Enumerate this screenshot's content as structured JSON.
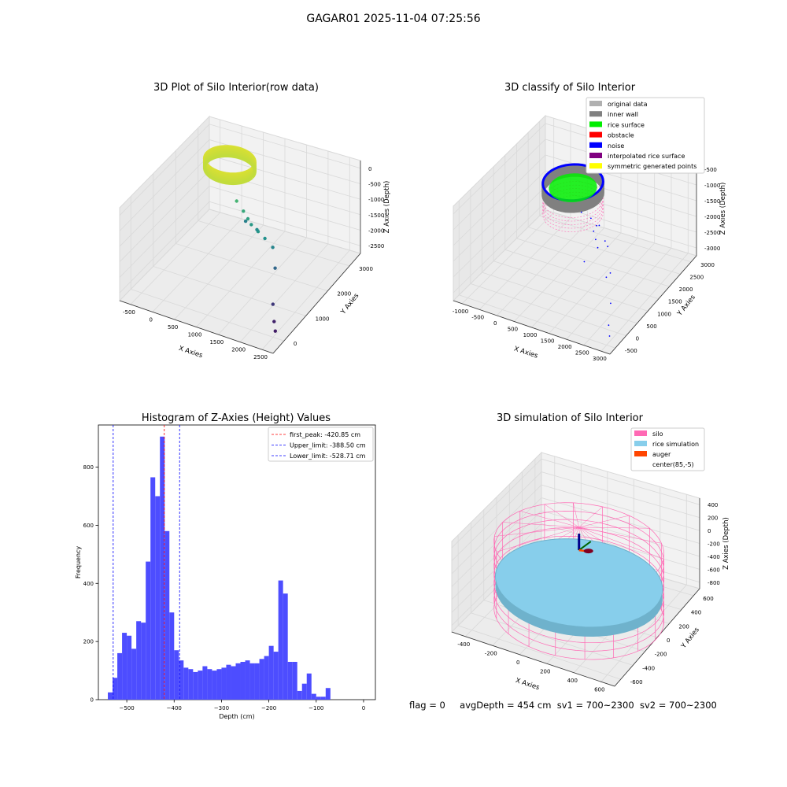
{
  "figure": {
    "suptitle": "GAGAR01 2025-11-04 07:25:56",
    "status": {
      "flag": "flag = 0",
      "avg_depth": "avgDepth = 454 cm",
      "sv1": "sv1 = 700~2300",
      "sv2": "sv2 = 700~2300"
    }
  },
  "colors": {
    "pane": "#f2f2f2",
    "grid": "#d9d9d9",
    "axis": "#000000",
    "original_data": "#b0b0b0",
    "inner_wall": "#808080",
    "rice_surface": "#00ee00",
    "obstacle": "#ff0000",
    "noise": "#0000ff",
    "interpolated_rice_surface": "#800080",
    "symmetric_generated_points": "#ffff00",
    "histogram_bar": "#4d4dff",
    "silo": "#ff69b4",
    "rice_simulation": "#87ceeb",
    "auger": "#ff4500"
  },
  "chart_data": [
    {
      "id": "raw",
      "type": "scatter",
      "title": "3D Plot of Silo Interior(row data)",
      "xlabel": "X Axies",
      "ylabel": "Y Axies",
      "zlabel": "Z Axies (Depth)",
      "x_ticks": [
        "-500",
        "0",
        "500",
        "1000",
        "1500",
        "2000",
        "2500"
      ],
      "y_ticks": [
        "0",
        "1000",
        "2000",
        "3000"
      ],
      "z_ticks": [
        "0",
        "-500",
        "-1000",
        "-1500",
        "-2000",
        "-2500"
      ],
      "xlim": [
        -700,
        2700
      ],
      "ylim": [
        -600,
        3400
      ],
      "zlim": [
        -2900,
        100
      ],
      "colormap": "viridis",
      "ring": {
        "center_x": 100,
        "center_y": 100,
        "radius": 500,
        "z_top": -400,
        "z_bottom": -700
      },
      "points": [
        {
          "x": 600,
          "y": 800,
          "z": -950
        },
        {
          "x": 800,
          "y": 900,
          "z": -1100
        },
        {
          "x": 950,
          "y": 1000,
          "z": -1200
        },
        {
          "x": 1050,
          "y": 1050,
          "z": -1300
        },
        {
          "x": 1250,
          "y": 1150,
          "z": -1350
        },
        {
          "x": 1450,
          "y": 1250,
          "z": -1400
        },
        {
          "x": 1150,
          "y": 1000,
          "z": -1450
        },
        {
          "x": 750,
          "y": 700,
          "z": -1600
        },
        {
          "x": 1650,
          "y": 1300,
          "z": -1550
        },
        {
          "x": 1850,
          "y": 1600,
          "z": -1900
        },
        {
          "x": 2150,
          "y": 2300,
          "z": -2400
        },
        {
          "x": 2350,
          "y": 2650,
          "z": -2600
        },
        {
          "x": 2500,
          "y": 2900,
          "z": -2650
        }
      ]
    },
    {
      "id": "classify",
      "type": "scatter",
      "title": "3D classify of Silo Interior",
      "xlabel": "X Axies",
      "ylabel": "Y Axies",
      "zlabel": "Z Axies (Depth)",
      "x_ticks": [
        "-1000",
        "-500",
        "0",
        "500",
        "1000",
        "1500",
        "2000",
        "2500",
        "3000"
      ],
      "y_ticks": [
        "-500",
        "0",
        "500",
        "1000",
        "1500",
        "2000",
        "2500",
        "3000"
      ],
      "z_ticks": [
        "-500",
        "-1000",
        "-1500",
        "-2000",
        "-2500",
        "-3000"
      ],
      "xlim": [
        -1200,
        3100
      ],
      "ylim": [
        -700,
        3300
      ],
      "zlim": [
        -3100,
        100
      ],
      "legend": [
        "original data",
        "inner wall",
        "rice surface",
        "obstacle",
        "noise",
        "interpolated rice surface",
        "symmetric generated points"
      ],
      "legend_position": "upper right",
      "noise_points": [
        {
          "x": 800,
          "y": 900,
          "z": -1100
        },
        {
          "x": 1000,
          "y": 800,
          "z": -1300
        },
        {
          "x": 1200,
          "y": 1000,
          "z": -1500
        },
        {
          "x": 1350,
          "y": 1150,
          "z": -1600
        },
        {
          "x": 1500,
          "y": 1300,
          "z": -1700
        },
        {
          "x": 1100,
          "y": 600,
          "z": -1650
        },
        {
          "x": 1450,
          "y": 900,
          "z": -1800
        },
        {
          "x": 1650,
          "y": 1100,
          "z": -1750
        },
        {
          "x": 2100,
          "y": 1700,
          "z": -2000
        },
        {
          "x": 2550,
          "y": 2400,
          "z": -2300
        },
        {
          "x": 2750,
          "y": 2800,
          "z": -2650
        },
        {
          "x": 2900,
          "y": 3000,
          "z": -2800
        },
        {
          "x": 1800,
          "y": 1400,
          "z": -2500
        },
        {
          "x": 900,
          "y": 400,
          "z": -1900
        },
        {
          "x": 1700,
          "y": 2200,
          "z": -1400
        }
      ]
    },
    {
      "id": "histogram",
      "type": "bar",
      "title": "Histogram of Z-Axies (Height) Values",
      "xlabel": "Depth (cm)",
      "ylabel": "Frequency",
      "xlim": [
        -560,
        25
      ],
      "ylim": [
        0,
        945
      ],
      "x_ticks": [
        -500,
        -400,
        -300,
        -200,
        -100,
        0
      ],
      "y_ticks": [
        0,
        200,
        400,
        600,
        800
      ],
      "bin_start": -540,
      "bin_width": 10,
      "values": [
        25,
        75,
        160,
        230,
        220,
        175,
        270,
        265,
        475,
        765,
        700,
        905,
        580,
        300,
        170,
        135,
        110,
        105,
        95,
        100,
        115,
        105,
        100,
        105,
        110,
        120,
        115,
        125,
        130,
        135,
        125,
        125,
        140,
        150,
        185,
        165,
        410,
        365,
        130,
        130,
        30,
        55,
        90,
        20,
        10,
        10,
        40
      ],
      "vlines": [
        {
          "label": "first_peak: -420.85 cm",
          "x": -420.85,
          "color": "#ff0000"
        },
        {
          "label": "Upper_limit: -388.50 cm",
          "x": -388.5,
          "color": "#0000ff"
        },
        {
          "label": "Lower_limit: -528.71 cm",
          "x": -528.71,
          "color": "#0000ff"
        }
      ],
      "legend_position": "upper right"
    },
    {
      "id": "simulation",
      "type": "surface",
      "title": "3D simulation of Silo Interior",
      "xlabel": "X Axies",
      "ylabel": "Y Axies",
      "zlabel": "Z Axies (Depth)",
      "x_ticks": [
        "-400",
        "-200",
        "0",
        "200",
        "400",
        "600"
      ],
      "y_ticks": [
        "-600",
        "-400",
        "-200",
        "0",
        "200",
        "400",
        "600"
      ],
      "z_ticks": [
        "400",
        "200",
        "0",
        "-200",
        "-400",
        "-600",
        "-800"
      ],
      "xlim": [
        -560,
        720
      ],
      "ylim": [
        -720,
        720
      ],
      "zlim": [
        -950,
        470
      ],
      "silo": {
        "center_x": 85,
        "center_y": -5,
        "radius": 600,
        "z_top": 100,
        "z_bottom": -950
      },
      "rice_surface": {
        "depth": -454,
        "center_x": 85,
        "center_y": -5,
        "radius": 590
      },
      "legend": [
        "silo",
        "rice simulation",
        "auger",
        "center(85,-5)"
      ],
      "legend_position": "upper right"
    }
  ]
}
